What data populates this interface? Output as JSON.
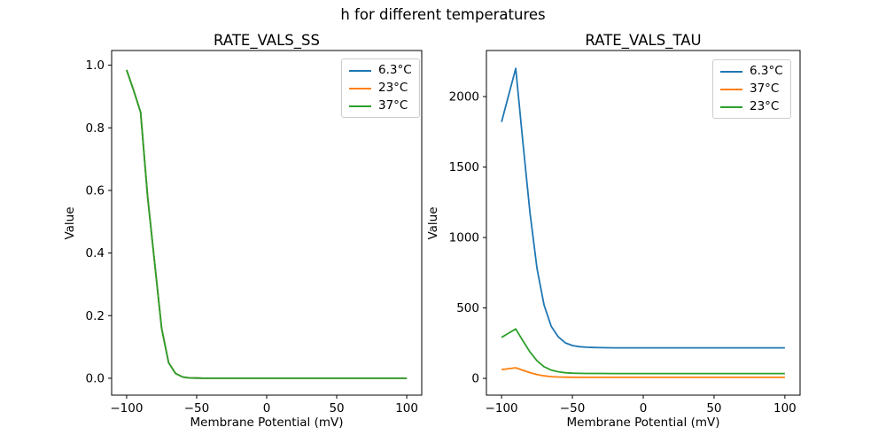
{
  "suptitle": "h for different temperatures",
  "palette": {
    "blue": "#1f77b4",
    "orange": "#ff7f0e",
    "green": "#2ca02c"
  },
  "chart_data": [
    {
      "type": "line",
      "title": "RATE_VALS_SS",
      "xlabel": "Membrane Potential (mV)",
      "ylabel": "Value",
      "grid": false,
      "legend_position": "upper right",
      "xlim": [
        -110.7,
        110.7
      ],
      "ylim": [
        -0.054,
        1.047
      ],
      "xticks": {
        "values": [
          -100,
          -50,
          0,
          50,
          100
        ],
        "labels": [
          "−100",
          "−50",
          "0",
          "50",
          "100"
        ]
      },
      "yticks": {
        "values": [
          0,
          0.2,
          0.4,
          0.6,
          0.8,
          1.0
        ],
        "labels": [
          "0.0",
          "0.2",
          "0.4",
          "0.6",
          "0.8",
          "1.0"
        ]
      },
      "x": [
        -100,
        -95,
        -90,
        -85,
        -80,
        -75,
        -70,
        -65,
        -60,
        -55,
        -50,
        -45,
        -40,
        -35,
        -30,
        -20,
        -10,
        0,
        20,
        40,
        60,
        80,
        100
      ],
      "series": [
        {
          "name": "6.3°C",
          "color": "#1f77b4",
          "values": [
            0.985,
            0.92,
            0.85,
            0.58,
            0.37,
            0.16,
            0.05,
            0.015,
            0.004,
            0.001,
            0.0005,
            0.0002,
            0.0001,
            0.0001,
            0.0001,
            0.0001,
            0.0001,
            0.0001,
            0.0001,
            0.0001,
            0.0001,
            0.0001,
            0.0001
          ]
        },
        {
          "name": "23°C",
          "color": "#ff7f0e",
          "values": [
            0.985,
            0.92,
            0.85,
            0.58,
            0.37,
            0.16,
            0.05,
            0.015,
            0.004,
            0.001,
            0.0005,
            0.0002,
            0.0001,
            0.0001,
            0.0001,
            0.0001,
            0.0001,
            0.0001,
            0.0001,
            0.0001,
            0.0001,
            0.0001,
            0.0001
          ]
        },
        {
          "name": "37°C",
          "color": "#2ca02c",
          "values": [
            0.985,
            0.92,
            0.85,
            0.58,
            0.37,
            0.16,
            0.05,
            0.015,
            0.004,
            0.001,
            0.0005,
            0.0002,
            0.0001,
            0.0001,
            0.0001,
            0.0001,
            0.0001,
            0.0001,
            0.0001,
            0.0001,
            0.0001,
            0.0001,
            0.0001
          ]
        }
      ]
    },
    {
      "type": "line",
      "title": "RATE_VALS_TAU",
      "xlabel": "Membrane Potential (mV)",
      "ylabel": "Value",
      "grid": false,
      "legend_position": "upper right",
      "xlim": [
        -110.7,
        110.7
      ],
      "ylim": [
        -119,
        2327
      ],
      "xticks": {
        "values": [
          -100,
          -50,
          0,
          50,
          100
        ],
        "labels": [
          "−100",
          "−50",
          "0",
          "50",
          "100"
        ]
      },
      "yticks": {
        "values": [
          0,
          500,
          1000,
          1500,
          2000
        ],
        "labels": [
          "0",
          "500",
          "1000",
          "1500",
          "2000"
        ]
      },
      "x": [
        -100,
        -95,
        -90,
        -85,
        -80,
        -75,
        -70,
        -65,
        -60,
        -55,
        -50,
        -45,
        -40,
        -35,
        -30,
        -20,
        -10,
        0,
        20,
        40,
        60,
        80,
        100
      ],
      "series": [
        {
          "name": "6.3°C",
          "color": "#1f77b4",
          "values": [
            1820,
            2010,
            2200,
            1680,
            1180,
            780,
            520,
            370,
            295,
            252,
            233,
            225,
            221,
            219,
            218,
            217,
            217,
            217,
            217,
            217,
            217,
            217,
            217
          ]
        },
        {
          "name": "37°C",
          "color": "#ff7f0e",
          "values": [
            62.5,
            69.1,
            75.6,
            57.7,
            40.5,
            26.8,
            17.9,
            12.7,
            10.1,
            8.7,
            8.0,
            7.7,
            7.6,
            7.5,
            7.5,
            7.5,
            7.5,
            7.5,
            7.5,
            7.5,
            7.5,
            7.5,
            7.5
          ]
        },
        {
          "name": "23°C",
          "color": "#2ca02c",
          "values": [
            291,
            321,
            351,
            268,
            188,
            125,
            83,
            59,
            47,
            40,
            37.2,
            35.9,
            35.3,
            35.0,
            34.8,
            34.7,
            34.7,
            34.7,
            34.7,
            34.7,
            34.7,
            34.7,
            34.7
          ]
        }
      ]
    }
  ]
}
